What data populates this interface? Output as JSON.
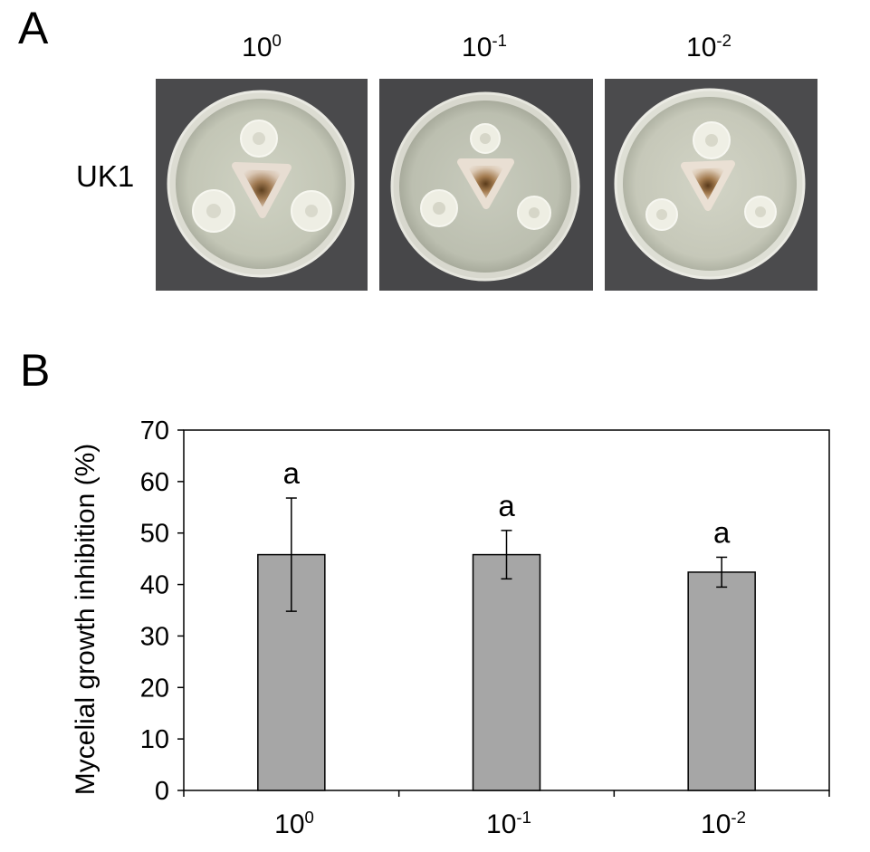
{
  "panel_a": {
    "letter": "A",
    "row_label": "UK1",
    "columns": [
      {
        "base": "10",
        "exp": "0"
      },
      {
        "base": "10",
        "exp": "-1"
      },
      {
        "base": "10",
        "exp": "-2"
      }
    ]
  },
  "panel_b": {
    "letter": "B"
  },
  "colors": {
    "plate_background": "#4a4a4c",
    "agar": "#c9cbbc",
    "bar_fill": "#a6a6a6",
    "bar_stroke": "#000000"
  },
  "chart_data": {
    "type": "bar",
    "categories": [
      "10^0",
      "10^-1",
      "10^-2"
    ],
    "category_labels": [
      {
        "base": "10",
        "exp": "0"
      },
      {
        "base": "10",
        "exp": "-1"
      },
      {
        "base": "10",
        "exp": "-2"
      }
    ],
    "values": [
      45.8,
      45.8,
      42.4
    ],
    "errors": [
      11.0,
      4.7,
      2.9
    ],
    "significance_letters": [
      "a",
      "a",
      "a"
    ],
    "ylabel": "Mycelial growth inhibition (%)",
    "xlabel": "",
    "ylim": [
      0,
      70
    ],
    "yticks": [
      0,
      10,
      20,
      30,
      40,
      50,
      60,
      70
    ],
    "grid": false
  }
}
